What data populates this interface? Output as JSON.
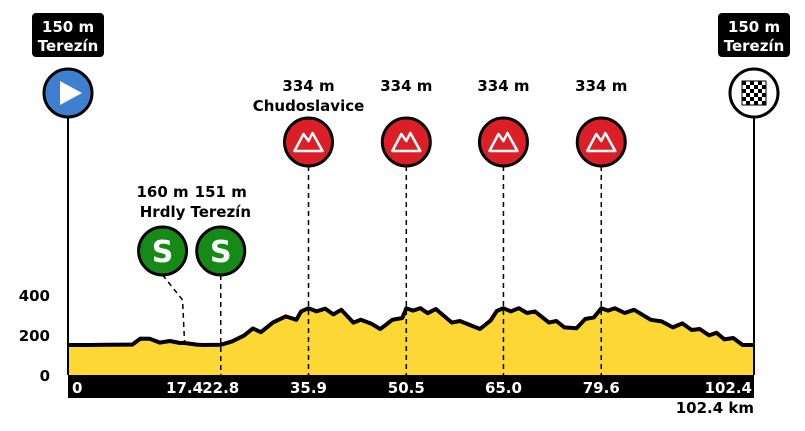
{
  "chart_data": {
    "type": "area",
    "title": "",
    "xlabel": "",
    "ylabel": "",
    "x_unit": "km",
    "y_unit": "m",
    "xlim": [
      0,
      102.4
    ],
    "ylim": [
      0,
      400
    ],
    "y_ticks": [
      "0",
      "200",
      "400"
    ],
    "x_ticks": [
      {
        "x": 0,
        "label": "0"
      },
      {
        "x": 17.4,
        "label": "17.4"
      },
      {
        "x": 22.8,
        "label": "22.8"
      },
      {
        "x": 35.9,
        "label": "35.9"
      },
      {
        "x": 50.5,
        "label": "50.5"
      },
      {
        "x": 65.0,
        "label": "65.0"
      },
      {
        "x": 79.6,
        "label": "79.6"
      },
      {
        "x": 102.4,
        "label": "102.4"
      }
    ],
    "total_distance_label": "102.4 km",
    "profile": [
      [
        0,
        150
      ],
      [
        3,
        150
      ],
      [
        6,
        151
      ],
      [
        9.6,
        152
      ],
      [
        10.8,
        182
      ],
      [
        12.2,
        181
      ],
      [
        13.7,
        162
      ],
      [
        15.2,
        170
      ],
      [
        16.7,
        160
      ],
      [
        17.4,
        160
      ],
      [
        19.2,
        152
      ],
      [
        20.2,
        150
      ],
      [
        22.8,
        151
      ],
      [
        24.5,
        168
      ],
      [
        26.3,
        198
      ],
      [
        27.6,
        233
      ],
      [
        28.8,
        214
      ],
      [
        30.6,
        263
      ],
      [
        32.5,
        293
      ],
      [
        34.1,
        276
      ],
      [
        34.8,
        318
      ],
      [
        35.9,
        334
      ],
      [
        37.1,
        318
      ],
      [
        38.4,
        332
      ],
      [
        39.6,
        303
      ],
      [
        40.8,
        326
      ],
      [
        42.6,
        262
      ],
      [
        43.7,
        276
      ],
      [
        45.3,
        256
      ],
      [
        46.6,
        230
      ],
      [
        47.5,
        252
      ],
      [
        48.4,
        276
      ],
      [
        49.9,
        285
      ],
      [
        50.5,
        334
      ],
      [
        51.5,
        322
      ],
      [
        52.6,
        334
      ],
      [
        53.7,
        309
      ],
      [
        54.9,
        330
      ],
      [
        57.3,
        262
      ],
      [
        58.5,
        270
      ],
      [
        61.5,
        230
      ],
      [
        63.1,
        273
      ],
      [
        64.0,
        320
      ],
      [
        65.0,
        334
      ],
      [
        66.1,
        318
      ],
      [
        67.3,
        334
      ],
      [
        68.5,
        310
      ],
      [
        69.7,
        318
      ],
      [
        71.8,
        262
      ],
      [
        72.9,
        270
      ],
      [
        74.1,
        238
      ],
      [
        75.9,
        234
      ],
      [
        77.2,
        280
      ],
      [
        78.5,
        288
      ],
      [
        79.6,
        334
      ],
      [
        80.6,
        322
      ],
      [
        81.6,
        334
      ],
      [
        83.1,
        310
      ],
      [
        84.5,
        326
      ],
      [
        87.0,
        276
      ],
      [
        88.6,
        268
      ],
      [
        90.3,
        238
      ],
      [
        91.7,
        258
      ],
      [
        93.1,
        225
      ],
      [
        94.3,
        230
      ],
      [
        95.7,
        198
      ],
      [
        96.8,
        211
      ],
      [
        98.0,
        178
      ],
      [
        99.3,
        185
      ],
      [
        100.7,
        150
      ],
      [
        102.4,
        150
      ]
    ],
    "points": [
      {
        "type": "start",
        "icon": "play-icon",
        "km": 0,
        "altitude": "150 m",
        "name": "Terezín"
      },
      {
        "type": "sprint",
        "icon": "sprint-icon",
        "letter": "S",
        "km": 17.4,
        "altitude": "160 m",
        "name": "Hrdly"
      },
      {
        "type": "sprint",
        "icon": "sprint-icon",
        "letter": "S",
        "km": 22.8,
        "altitude": "151 m",
        "name": "Terezín"
      },
      {
        "type": "climb",
        "icon": "mountain-icon",
        "km": 35.9,
        "altitude": "334 m",
        "name": "Chudoslavice"
      },
      {
        "type": "climb",
        "icon": "mountain-icon",
        "km": 50.5,
        "altitude": "334 m",
        "name": ""
      },
      {
        "type": "climb",
        "icon": "mountain-icon",
        "km": 65.0,
        "altitude": "334 m",
        "name": ""
      },
      {
        "type": "climb",
        "icon": "mountain-icon",
        "km": 79.6,
        "altitude": "334 m",
        "name": ""
      },
      {
        "type": "finish",
        "icon": "checkered-flag-icon",
        "km": 102.4,
        "altitude": "150 m",
        "name": "Terezín"
      }
    ],
    "colors": {
      "fill": "#fdd835",
      "outline": "#000000",
      "start": "#3f7fd0",
      "sprint": "#168a16",
      "climb": "#dc1f26",
      "finish": "#ffffff"
    }
  }
}
